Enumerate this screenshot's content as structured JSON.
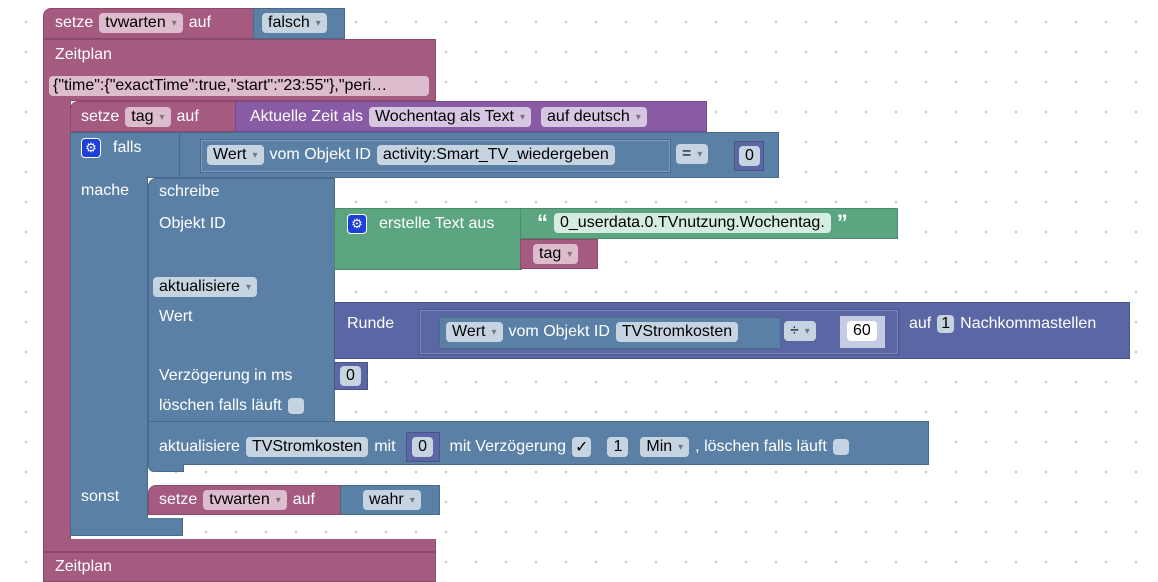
{
  "b1": {
    "setze": "setze",
    "var": "tvwarten",
    "auf": "auf",
    "value": "falsch"
  },
  "zeitplan": {
    "label": "Zeitplan",
    "schedule": "{\"time\":{\"exactTime\":true,\"start\":\"23:55\"},\"peri…"
  },
  "b2": {
    "setze": "setze",
    "var": "tag",
    "auf": "auf",
    "label": "Aktuelle Zeit als",
    "format": "Wochentag als Text",
    "lang": "auf deutsch"
  },
  "if": {
    "falls": "falls",
    "mache": "mache",
    "sonst": "sonst",
    "wert": "Wert",
    "vom": "vom Objekt ID",
    "oid": "activity:Smart_TV_wiedergeben",
    "op": "=",
    "num": "0"
  },
  "write": {
    "schreibe": "schreibe",
    "objid": "Objekt ID",
    "mode": "aktualisiere",
    "wert": "Wert",
    "delay": "Verzögerung in ms",
    "delay_val": "0",
    "clear": "löschen falls läuft"
  },
  "text": {
    "label": "erstelle Text aus",
    "open": "“",
    "close": "”",
    "str": "0_userdata.0.TVnutzung.Wochentag.",
    "var": "tag"
  },
  "round": {
    "label": "Runde",
    "wert": "Wert",
    "vom": "vom Objekt ID",
    "oid": "TVStromkosten",
    "op": "÷",
    "num": "60",
    "auf": "auf",
    "digits": "1",
    "suffix": "Nachkommastellen"
  },
  "upd": {
    "label": "aktualisiere",
    "oid": "TVStromkosten",
    "mit": "mit",
    "val": "0",
    "delay": "mit Verzögerung",
    "check": "✓",
    "n": "1",
    "unit": "Min",
    "clear": ", löschen falls läuft"
  },
  "b3": {
    "setze": "setze",
    "var": "tvwarten",
    "auf": "auf",
    "value": "wahr"
  },
  "zeitplan2": {
    "label": "Zeitplan"
  }
}
